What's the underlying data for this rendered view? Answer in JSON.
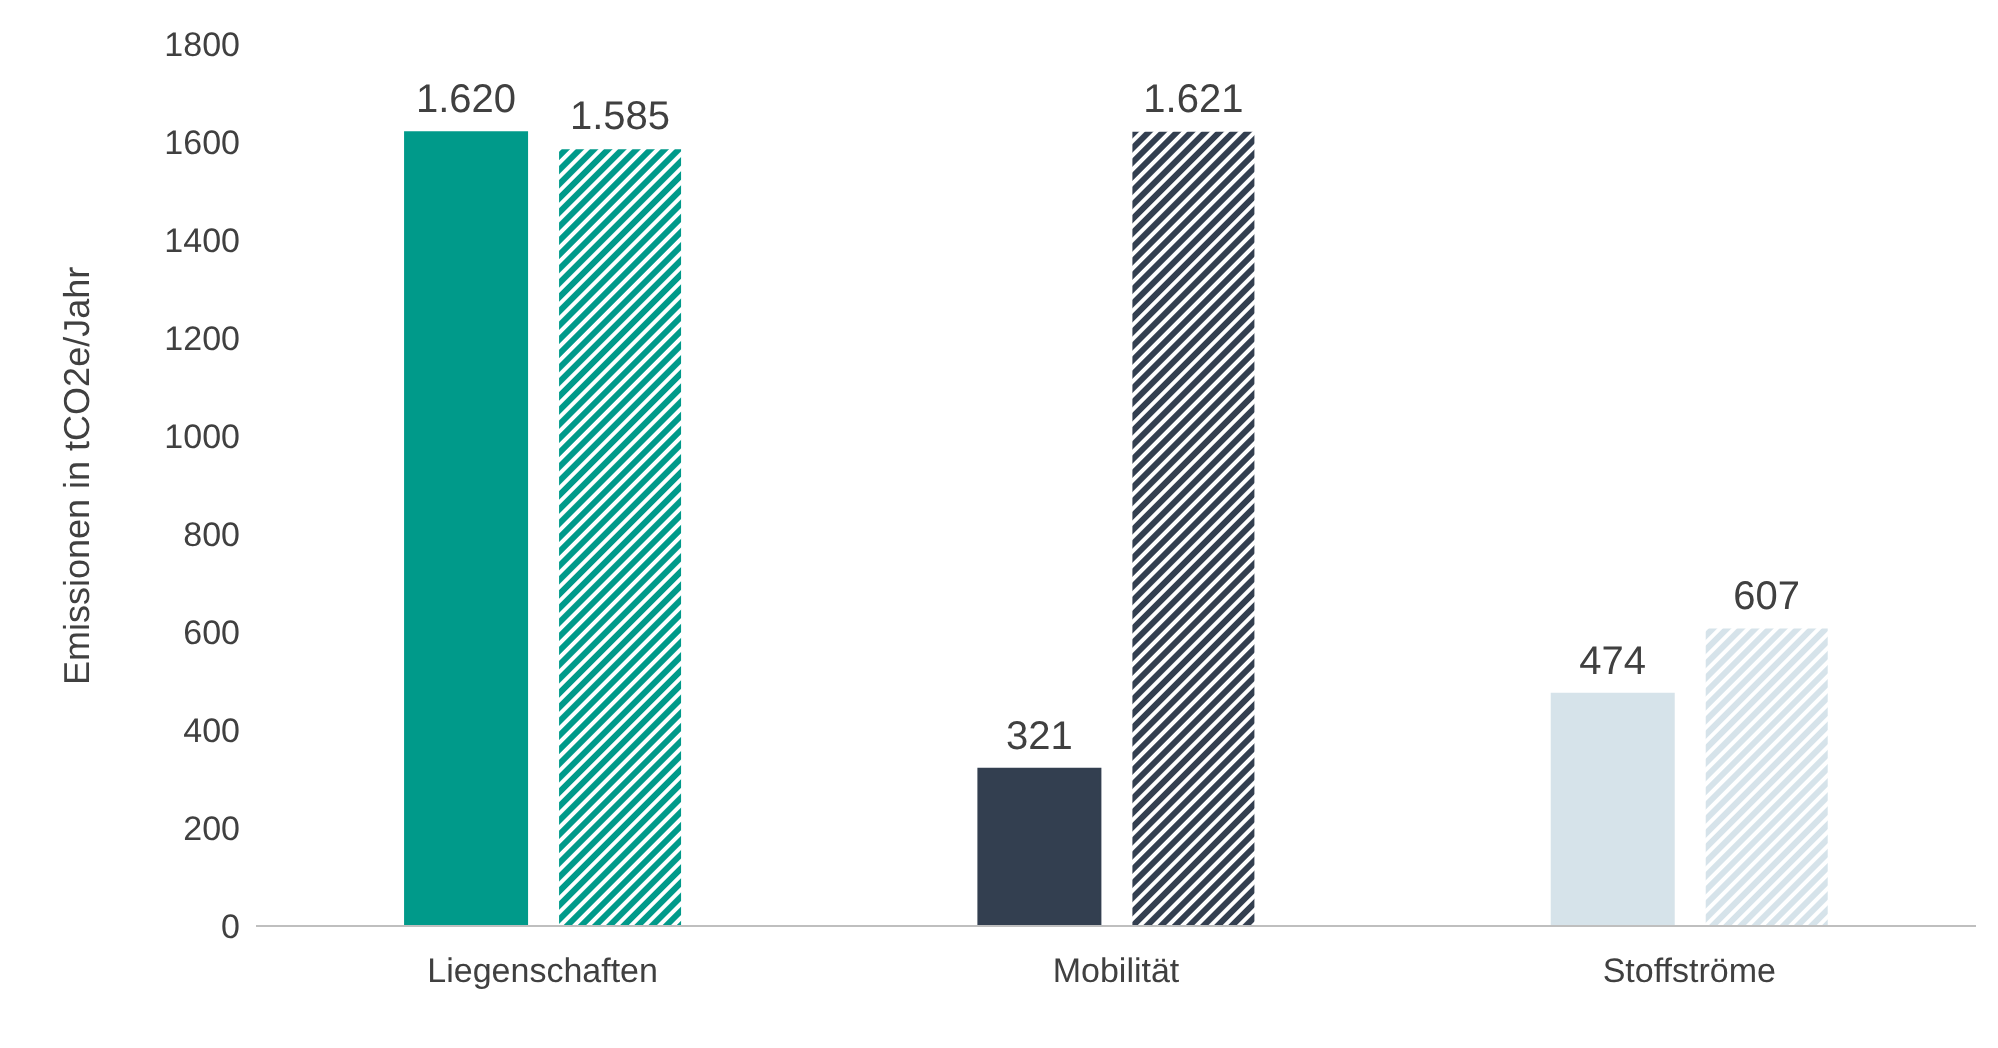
{
  "chart_data": {
    "type": "bar",
    "ylabel": "Emissionen in tCO2e/Jahr",
    "categories": [
      "Liegenschaften",
      "Mobilität",
      "Stoffströme"
    ],
    "series": [
      {
        "colors": [
          "#009a8a",
          "#333f50",
          "#d6e3ea"
        ],
        "values": [
          1620,
          321,
          474
        ],
        "value_labels": [
          "1.620",
          "321",
          "474"
        ]
      },
      {
        "colors": [
          "#009a8a",
          "#333f50",
          "#d6e3ea"
        ],
        "values": [
          1585,
          1621,
          607
        ],
        "value_labels": [
          "1.585",
          "1.621",
          "607"
        ]
      }
    ],
    "ylim": [
      0,
      1800
    ],
    "yticks": [
      0,
      200,
      400,
      600,
      800,
      1000,
      1200,
      1400,
      1600,
      1800
    ],
    "grid": false,
    "legend": false
  }
}
